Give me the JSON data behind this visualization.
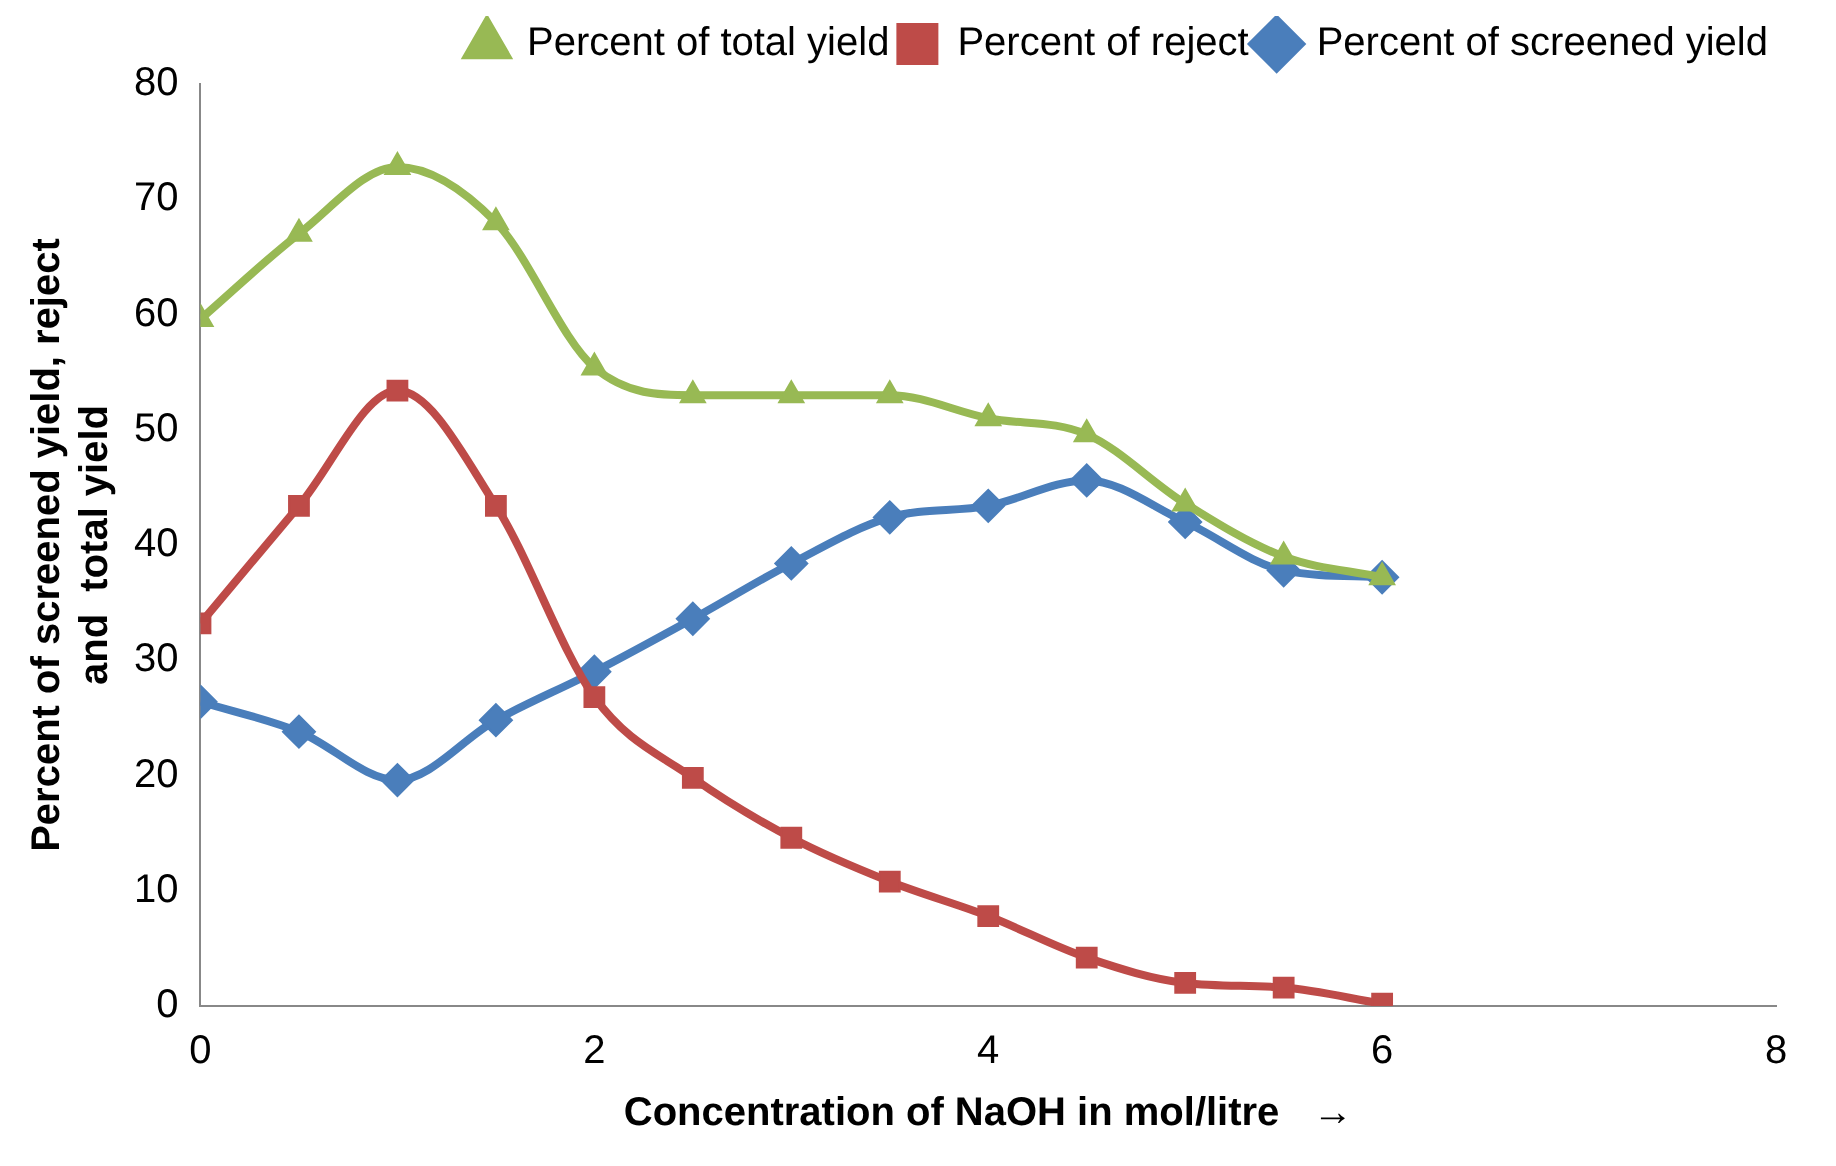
{
  "chart_data": {
    "type": "line",
    "xlabel": "Concentration of NaOH in mol/litre   →",
    "ylabel": "Percent of screened yield, reject\nand  total yield",
    "x": [
      0,
      0.5,
      1,
      1.5,
      2,
      2.5,
      3,
      3.5,
      4,
      4.5,
      5,
      5.5,
      6
    ],
    "series": [
      {
        "name": "Percent of screened yield",
        "color": "#4a7ebb",
        "marker": "diamond",
        "values": [
          26.4,
          23.8,
          19.6,
          24.8,
          29,
          33.6,
          38.4,
          42.4,
          43.4,
          45.6,
          42,
          37.8,
          37.2
        ]
      },
      {
        "name": "Percent of reject",
        "color": "#be4b48",
        "marker": "square",
        "values": [
          33.2,
          43.4,
          53.4,
          43.4,
          26.8,
          19.8,
          14.6,
          10.8,
          7.8,
          4.2,
          2,
          1.6,
          0.2
        ]
      },
      {
        "name": "Percent of total yield",
        "color": "#98b954",
        "marker": "triangle",
        "values": [
          59.6,
          67,
          72.8,
          68,
          55.4,
          53,
          53,
          53,
          51,
          49.6,
          43.6,
          39,
          37.2
        ]
      }
    ],
    "xlim": [
      0,
      8
    ],
    "xticks": [
      0,
      2,
      4,
      6,
      8
    ],
    "ylim": [
      0,
      80
    ],
    "yticks": [
      0,
      10,
      20,
      30,
      40,
      50,
      60,
      70,
      80
    ],
    "grid": false,
    "legend": "top right"
  }
}
